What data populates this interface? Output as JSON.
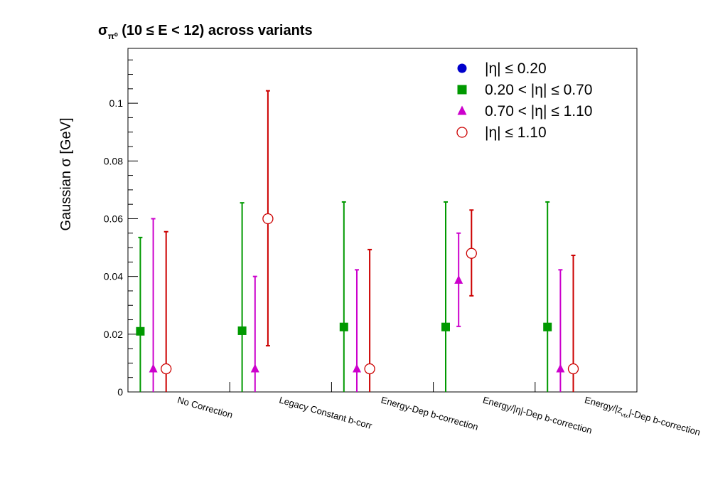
{
  "chart_data": {
    "type": "scatter",
    "title": "σπ⁰ (10 ≤ E < 12) across variants",
    "title_main": "σ",
    "title_sub": "π⁰",
    "title_rest": " (10 ≤ E < 12) across variants",
    "ylabel": "Gaussian σ  [GeV]",
    "xlabel": "",
    "ylim": [
      0,
      0.119
    ],
    "yticks": [
      0,
      0.02,
      0.04,
      0.06,
      0.08,
      0.1
    ],
    "ytick_labels": [
      "0",
      "0.02",
      "0.04",
      "0.06",
      "0.08",
      "0.1"
    ],
    "categories": [
      "No Correction",
      "Legacy Constant b-corr",
      "Energy-Dep b-correction",
      "Energy/|η|-Dep b-correction",
      "Energy/|zvtx|-Dep b-correction"
    ],
    "category_labels": [
      {
        "text": "No Correction"
      },
      {
        "text": "Legacy Constant b-corr"
      },
      {
        "text": "Energy-Dep b-correction"
      },
      {
        "text": "Energy/|η|-Dep b-correction"
      },
      {
        "pre": "Energy/|z",
        "sub": "vtx",
        "post": "|-Dep b-correction"
      }
    ],
    "grid": false,
    "legend_position": "top-right",
    "series": [
      {
        "name": "|η| ≤ 0.20",
        "color": "#0000cc",
        "marker": "circle-filled",
        "values": [
          null,
          null,
          null,
          null,
          null
        ],
        "err_low": [
          null,
          null,
          null,
          null,
          null
        ],
        "err_high": [
          null,
          null,
          null,
          null,
          null
        ]
      },
      {
        "name": "0.20 < |η| ≤ 0.70",
        "color": "#009900",
        "marker": "square",
        "values": [
          0.021,
          0.0212,
          0.0225,
          0.0225,
          0.0225
        ],
        "err_low": [
          0.021,
          0.0212,
          0.0225,
          0.0225,
          0.0225
        ],
        "err_high": [
          0.0325,
          0.0443,
          0.0433,
          0.0433,
          0.0433
        ]
      },
      {
        "name": "0.70 < |η| ≤ 1.10",
        "color": "#cc00cc",
        "marker": "triangle",
        "values": [
          0.008,
          0.008,
          0.008,
          0.0387,
          0.008
        ],
        "err_low": [
          0.008,
          0.008,
          0.008,
          0.016,
          0.008
        ],
        "err_high": [
          0.052,
          0.032,
          0.0343,
          0.0163,
          0.0343
        ]
      },
      {
        "name": "|η| ≤ 1.10",
        "color": "#cc0000",
        "marker": "circle-open",
        "values": [
          0.008,
          0.06,
          0.008,
          0.048,
          0.008
        ],
        "err_low": [
          0.008,
          0.044,
          0.008,
          0.0147,
          0.008
        ],
        "err_high": [
          0.0475,
          0.0443,
          0.0413,
          0.015,
          0.0393
        ]
      }
    ]
  }
}
